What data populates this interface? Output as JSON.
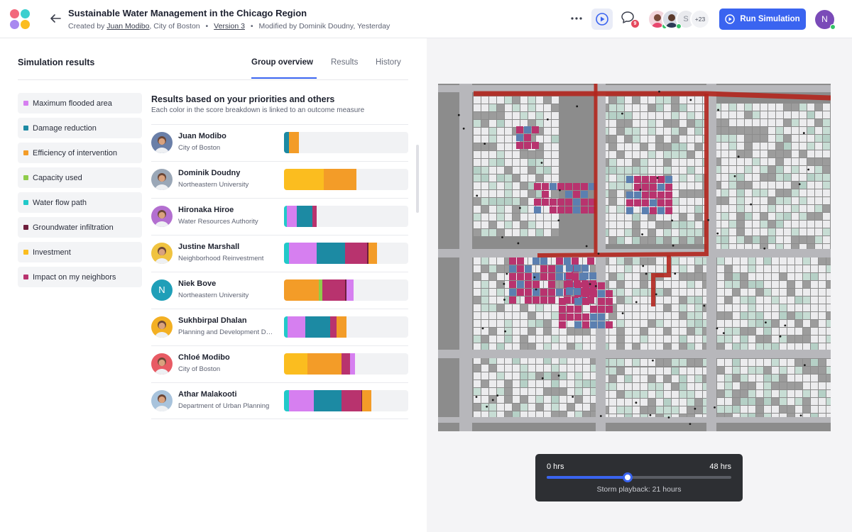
{
  "app": {
    "title": "Sustainable Water Management in the Chicago Region",
    "created_prefix": "Created by",
    "creator": "Juan Modibo",
    "creator_org": ", City of Boston",
    "version": "Version 3",
    "modified": "Modified by Dominik Doudny, Yesterday",
    "notification_count": "9",
    "collaborators_more": "+23",
    "run_button": "Run Simulation",
    "user_initial": "N"
  },
  "panel": {
    "title": "Simulation results",
    "tabs": [
      {
        "label": "Group overview",
        "active": true
      },
      {
        "label": "Results",
        "active": false
      },
      {
        "label": "History",
        "active": false
      }
    ]
  },
  "legend": [
    {
      "label": "Maximum flooded area",
      "color": "#d67ff0"
    },
    {
      "label": "Damage reduction",
      "color": "#1c8aa3"
    },
    {
      "label": "Efficiency of intervention",
      "color": "#f39c28"
    },
    {
      "label": "Capacity used",
      "color": "#8fcc4b"
    },
    {
      "label": "Water flow path",
      "color": "#22c9c9"
    },
    {
      "label": "Groundwater infiltration",
      "color": "#6e1e3c"
    },
    {
      "label": "Investment",
      "color": "#fbbd1f"
    },
    {
      "label": "Impact on my neighbors",
      "color": "#b8336e"
    }
  ],
  "results": {
    "heading": "Results based on your priorities and others",
    "subheading": "Each color in the score breakdown is linked to an outcome measure",
    "people": [
      {
        "name": "Juan Modibo",
        "org": "City of Boston",
        "avatar": "photo",
        "tone": "#6a7fa8",
        "segments": [
          {
            "color": "#1c8aa3",
            "value": 4
          },
          {
            "color": "#f39c28",
            "value": 8
          }
        ]
      },
      {
        "name": "Dominik Doudny",
        "org": "Northeastern University",
        "avatar": "photo",
        "tone": "#9aa7b7",
        "segments": [
          {
            "color": "#fbbd1f",
            "value": 32
          },
          {
            "color": "#f39c28",
            "value": 26
          }
        ]
      },
      {
        "name": "Hironaka Hiroe",
        "org": "Water Resources Authority",
        "avatar": "photo",
        "tone": "#b36fd0",
        "segments": [
          {
            "color": "#22c9c9",
            "value": 2
          },
          {
            "color": "#d67ff0",
            "value": 8
          },
          {
            "color": "#1c8aa3",
            "value": 13
          },
          {
            "color": "#b8336e",
            "value": 3
          }
        ]
      },
      {
        "name": "Justine Marshall",
        "org": "Neighborhood Reinvestment",
        "avatar": "photo",
        "tone": "#f0c340",
        "segments": [
          {
            "color": "#22c9c9",
            "value": 4
          },
          {
            "color": "#d67ff0",
            "value": 22
          },
          {
            "color": "#1c8aa3",
            "value": 23
          },
          {
            "color": "#b8336e",
            "value": 18
          },
          {
            "color": "#6e1e3c",
            "value": 1
          },
          {
            "color": "#f39c28",
            "value": 7
          }
        ]
      },
      {
        "name": "Niek Bove",
        "org": "Northeastern University",
        "avatar": "initial",
        "initial": "N",
        "tone": "#1f9fb8",
        "segments": [
          {
            "color": "#f39c28",
            "value": 28
          },
          {
            "color": "#8fcc4b",
            "value": 3
          },
          {
            "color": "#b8336e",
            "value": 18
          },
          {
            "color": "#6e1e3c",
            "value": 1
          },
          {
            "color": "#d67ff0",
            "value": 6
          }
        ]
      },
      {
        "name": "Sukhbirpal Dhalan",
        "org": "Planning and Development Department",
        "avatar": "photo",
        "tone": "#f3b023",
        "segments": [
          {
            "color": "#22c9c9",
            "value": 3
          },
          {
            "color": "#d67ff0",
            "value": 14
          },
          {
            "color": "#1c8aa3",
            "value": 20
          },
          {
            "color": "#b8336e",
            "value": 5
          },
          {
            "color": "#f39c28",
            "value": 8
          }
        ]
      },
      {
        "name": "Chloé Modibo",
        "org": "City of Boston",
        "avatar": "photo",
        "tone": "#e85b64",
        "segments": [
          {
            "color": "#fbbd1f",
            "value": 19
          },
          {
            "color": "#f39c28",
            "value": 27
          },
          {
            "color": "#b8336e",
            "value": 7
          },
          {
            "color": "#d67ff0",
            "value": 4
          }
        ]
      },
      {
        "name": "Athar Malakooti",
        "org": "Department of Urban Planning",
        "avatar": "photo",
        "tone": "#a8c3dc",
        "segments": [
          {
            "color": "#22c9c9",
            "value": 4
          },
          {
            "color": "#d67ff0",
            "value": 20
          },
          {
            "color": "#1c8aa3",
            "value": 22
          },
          {
            "color": "#b8336e",
            "value": 16
          },
          {
            "color": "#6e1e3c",
            "value": 1
          },
          {
            "color": "#f39c28",
            "value": 7
          }
        ]
      }
    ]
  },
  "playback": {
    "start_label": "0 hrs",
    "end_label": "48 hrs",
    "caption": "Storm playback: 21 hours",
    "progress": 0.4375
  }
}
